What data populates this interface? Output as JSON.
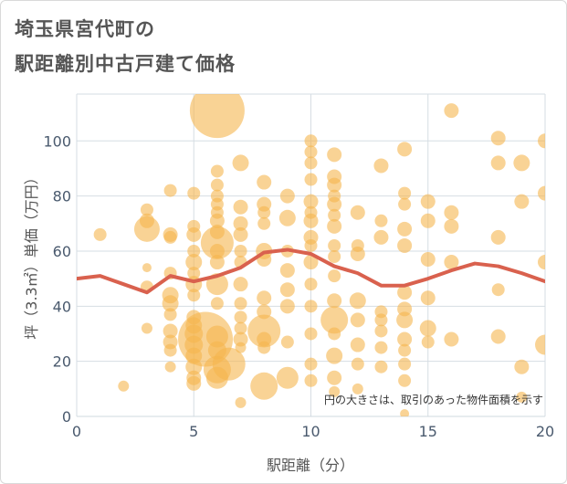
{
  "title_lines": [
    "埼玉県宮代町の",
    "駅距離別中古戸建て価格"
  ],
  "chart_data": {
    "type": "scatter",
    "title": "埼玉県宮代町の駅距離別中古戸建て価格",
    "xlabel": "駅距離（分）",
    "ylabel": "坪（3.3㎡）単価（万円）",
    "xlim": [
      0,
      20
    ],
    "ylim": [
      0,
      117
    ],
    "xticks": [
      0,
      5,
      10,
      15,
      20
    ],
    "yticks": [
      0,
      20,
      40,
      60,
      80,
      100
    ],
    "grid": true,
    "note": "円の大きさは、取引のあった物件面積を示す",
    "colors": {
      "bubble": "#f5b54f",
      "trend": "#d9614e",
      "grid": "#d6dde3"
    },
    "scatter": [
      {
        "x": 1,
        "y": 66,
        "s": 7
      },
      {
        "x": 2,
        "y": 11,
        "s": 6
      },
      {
        "x": 3,
        "y": 75,
        "s": 7
      },
      {
        "x": 3,
        "y": 71,
        "s": 8
      },
      {
        "x": 3,
        "y": 68,
        "s": 14
      },
      {
        "x": 3,
        "y": 54,
        "s": 5
      },
      {
        "x": 3,
        "y": 47,
        "s": 7
      },
      {
        "x": 3,
        "y": 32,
        "s": 6
      },
      {
        "x": 4,
        "y": 82,
        "s": 7
      },
      {
        "x": 4,
        "y": 66,
        "s": 8
      },
      {
        "x": 4,
        "y": 65,
        "s": 7
      },
      {
        "x": 4,
        "y": 52,
        "s": 7
      },
      {
        "x": 4,
        "y": 44,
        "s": 9
      },
      {
        "x": 4,
        "y": 41,
        "s": 9
      },
      {
        "x": 4,
        "y": 37,
        "s": 7
      },
      {
        "x": 4,
        "y": 31,
        "s": 8
      },
      {
        "x": 4,
        "y": 27,
        "s": 8
      },
      {
        "x": 4,
        "y": 24,
        "s": 7
      },
      {
        "x": 4,
        "y": 18,
        "s": 6
      },
      {
        "x": 5,
        "y": 81,
        "s": 7
      },
      {
        "x": 5,
        "y": 69,
        "s": 7
      },
      {
        "x": 5,
        "y": 66,
        "s": 8
      },
      {
        "x": 5,
        "y": 60,
        "s": 7
      },
      {
        "x": 5,
        "y": 56,
        "s": 9
      },
      {
        "x": 5,
        "y": 52,
        "s": 7
      },
      {
        "x": 5,
        "y": 48,
        "s": 9
      },
      {
        "x": 5,
        "y": 44,
        "s": 7
      },
      {
        "x": 5,
        "y": 36,
        "s": 8
      },
      {
        "x": 5,
        "y": 33,
        "s": 9
      },
      {
        "x": 5,
        "y": 30,
        "s": 10
      },
      {
        "x": 5,
        "y": 26,
        "s": 10
      },
      {
        "x": 5,
        "y": 22,
        "s": 9
      },
      {
        "x": 5,
        "y": 18,
        "s": 9
      },
      {
        "x": 5,
        "y": 14,
        "s": 8
      },
      {
        "x": 5,
        "y": 12,
        "s": 8
      },
      {
        "x": 6,
        "y": 111,
        "s": 30
      },
      {
        "x": 6,
        "y": 89,
        "s": 7
      },
      {
        "x": 6,
        "y": 84,
        "s": 7
      },
      {
        "x": 6,
        "y": 80,
        "s": 7
      },
      {
        "x": 6,
        "y": 77,
        "s": 7
      },
      {
        "x": 6,
        "y": 74,
        "s": 7
      },
      {
        "x": 6,
        "y": 71,
        "s": 8
      },
      {
        "x": 6,
        "y": 67,
        "s": 8
      },
      {
        "x": 6,
        "y": 63,
        "s": 18
      },
      {
        "x": 6,
        "y": 60,
        "s": 8
      },
      {
        "x": 6,
        "y": 56,
        "s": 8
      },
      {
        "x": 6,
        "y": 48,
        "s": 12
      },
      {
        "x": 6,
        "y": 41,
        "s": 7
      },
      {
        "x": 5.5,
        "y": 28,
        "s": 30
      },
      {
        "x": 6,
        "y": 29,
        "s": 12
      },
      {
        "x": 6,
        "y": 24,
        "s": 10
      },
      {
        "x": 6.5,
        "y": 19,
        "s": 18
      },
      {
        "x": 6,
        "y": 17,
        "s": 15
      },
      {
        "x": 6,
        "y": 14,
        "s": 12
      },
      {
        "x": 7,
        "y": 92,
        "s": 9
      },
      {
        "x": 7,
        "y": 76,
        "s": 8
      },
      {
        "x": 7,
        "y": 70,
        "s": 8
      },
      {
        "x": 7,
        "y": 66,
        "s": 8
      },
      {
        "x": 7,
        "y": 60,
        "s": 7
      },
      {
        "x": 7,
        "y": 56,
        "s": 7
      },
      {
        "x": 7,
        "y": 48,
        "s": 8
      },
      {
        "x": 7,
        "y": 41,
        "s": 7
      },
      {
        "x": 7,
        "y": 36,
        "s": 7
      },
      {
        "x": 7,
        "y": 32,
        "s": 7
      },
      {
        "x": 7,
        "y": 28,
        "s": 8
      },
      {
        "x": 7,
        "y": 25,
        "s": 6
      },
      {
        "x": 7,
        "y": 5,
        "s": 6
      },
      {
        "x": 8,
        "y": 85,
        "s": 8
      },
      {
        "x": 8,
        "y": 77,
        "s": 8
      },
      {
        "x": 8,
        "y": 74,
        "s": 7
      },
      {
        "x": 8,
        "y": 70,
        "s": 7
      },
      {
        "x": 8,
        "y": 60,
        "s": 9
      },
      {
        "x": 8,
        "y": 57,
        "s": 8
      },
      {
        "x": 8,
        "y": 43,
        "s": 8
      },
      {
        "x": 8,
        "y": 38,
        "s": 8
      },
      {
        "x": 8,
        "y": 31,
        "s": 18
      },
      {
        "x": 8,
        "y": 28,
        "s": 8
      },
      {
        "x": 8,
        "y": 25,
        "s": 7
      },
      {
        "x": 8,
        "y": 11,
        "s": 15
      },
      {
        "x": 9,
        "y": 80,
        "s": 8
      },
      {
        "x": 9,
        "y": 72,
        "s": 9
      },
      {
        "x": 9,
        "y": 60,
        "s": 7
      },
      {
        "x": 9,
        "y": 53,
        "s": 8
      },
      {
        "x": 9,
        "y": 46,
        "s": 8
      },
      {
        "x": 9,
        "y": 40,
        "s": 8
      },
      {
        "x": 9,
        "y": 27,
        "s": 7
      },
      {
        "x": 9,
        "y": 14,
        "s": 12
      },
      {
        "x": 10,
        "y": 100,
        "s": 7
      },
      {
        "x": 10,
        "y": 96,
        "s": 7
      },
      {
        "x": 10,
        "y": 92,
        "s": 7
      },
      {
        "x": 10,
        "y": 86,
        "s": 7
      },
      {
        "x": 10,
        "y": 78,
        "s": 8
      },
      {
        "x": 10,
        "y": 74,
        "s": 7
      },
      {
        "x": 10,
        "y": 71,
        "s": 8
      },
      {
        "x": 10,
        "y": 65,
        "s": 8
      },
      {
        "x": 10,
        "y": 62,
        "s": 7
      },
      {
        "x": 10,
        "y": 56,
        "s": 8
      },
      {
        "x": 10,
        "y": 48,
        "s": 7
      },
      {
        "x": 10,
        "y": 40,
        "s": 7
      },
      {
        "x": 10,
        "y": 30,
        "s": 7
      },
      {
        "x": 10,
        "y": 19,
        "s": 7
      },
      {
        "x": 10,
        "y": 13,
        "s": 7
      },
      {
        "x": 11,
        "y": 95,
        "s": 8
      },
      {
        "x": 11,
        "y": 87,
        "s": 8
      },
      {
        "x": 11,
        "y": 84,
        "s": 8
      },
      {
        "x": 11,
        "y": 80,
        "s": 7
      },
      {
        "x": 11,
        "y": 77,
        "s": 8
      },
      {
        "x": 11,
        "y": 73,
        "s": 7
      },
      {
        "x": 11,
        "y": 69,
        "s": 8
      },
      {
        "x": 11,
        "y": 62,
        "s": 7
      },
      {
        "x": 11,
        "y": 58,
        "s": 7
      },
      {
        "x": 11,
        "y": 51,
        "s": 7
      },
      {
        "x": 11,
        "y": 42,
        "s": 8
      },
      {
        "x": 11,
        "y": 35,
        "s": 15
      },
      {
        "x": 11,
        "y": 30,
        "s": 7
      },
      {
        "x": 11,
        "y": 22,
        "s": 9
      },
      {
        "x": 11,
        "y": 14,
        "s": 8
      },
      {
        "x": 11,
        "y": 9,
        "s": 6
      },
      {
        "x": 12,
        "y": 74,
        "s": 8
      },
      {
        "x": 12,
        "y": 62,
        "s": 7
      },
      {
        "x": 12,
        "y": 59,
        "s": 8
      },
      {
        "x": 12,
        "y": 42,
        "s": 9
      },
      {
        "x": 12,
        "y": 35,
        "s": 8
      },
      {
        "x": 12,
        "y": 26,
        "s": 8
      },
      {
        "x": 12,
        "y": 19,
        "s": 7
      },
      {
        "x": 12,
        "y": 10,
        "s": 6
      },
      {
        "x": 13,
        "y": 91,
        "s": 8
      },
      {
        "x": 13,
        "y": 71,
        "s": 7
      },
      {
        "x": 13,
        "y": 65,
        "s": 8
      },
      {
        "x": 13,
        "y": 38,
        "s": 7
      },
      {
        "x": 13,
        "y": 35,
        "s": 7
      },
      {
        "x": 13,
        "y": 31,
        "s": 7
      },
      {
        "x": 13,
        "y": 25,
        "s": 7
      },
      {
        "x": 13,
        "y": 18,
        "s": 7
      },
      {
        "x": 14,
        "y": 97,
        "s": 8
      },
      {
        "x": 14,
        "y": 81,
        "s": 7
      },
      {
        "x": 14,
        "y": 77,
        "s": 7
      },
      {
        "x": 14,
        "y": 68,
        "s": 8
      },
      {
        "x": 14,
        "y": 62,
        "s": 8
      },
      {
        "x": 14,
        "y": 45,
        "s": 8
      },
      {
        "x": 14,
        "y": 39,
        "s": 8
      },
      {
        "x": 14,
        "y": 35,
        "s": 9
      },
      {
        "x": 14,
        "y": 28,
        "s": 8
      },
      {
        "x": 14,
        "y": 24,
        "s": 7
      },
      {
        "x": 14,
        "y": 19,
        "s": 7
      },
      {
        "x": 14,
        "y": 13,
        "s": 7
      },
      {
        "x": 14,
        "y": 1,
        "s": 5
      },
      {
        "x": 15,
        "y": 78,
        "s": 8
      },
      {
        "x": 15,
        "y": 71,
        "s": 8
      },
      {
        "x": 15,
        "y": 57,
        "s": 8
      },
      {
        "x": 15,
        "y": 43,
        "s": 8
      },
      {
        "x": 15,
        "y": 32,
        "s": 9
      },
      {
        "x": 15,
        "y": 27,
        "s": 7
      },
      {
        "x": 16,
        "y": 111,
        "s": 8
      },
      {
        "x": 16,
        "y": 74,
        "s": 8
      },
      {
        "x": 16,
        "y": 69,
        "s": 8
      },
      {
        "x": 16,
        "y": 56,
        "s": 8
      },
      {
        "x": 16,
        "y": 28,
        "s": 8
      },
      {
        "x": 18,
        "y": 101,
        "s": 8
      },
      {
        "x": 18,
        "y": 92,
        "s": 8
      },
      {
        "x": 18,
        "y": 65,
        "s": 8
      },
      {
        "x": 18,
        "y": 46,
        "s": 7
      },
      {
        "x": 18,
        "y": 29,
        "s": 8
      },
      {
        "x": 19,
        "y": 92,
        "s": 9
      },
      {
        "x": 19,
        "y": 78,
        "s": 8
      },
      {
        "x": 19,
        "y": 18,
        "s": 8
      },
      {
        "x": 19,
        "y": 7,
        "s": 6
      },
      {
        "x": 20,
        "y": 100,
        "s": 8
      },
      {
        "x": 20,
        "y": 81,
        "s": 8
      },
      {
        "x": 20,
        "y": 56,
        "s": 8
      },
      {
        "x": 20,
        "y": 26,
        "s": 11
      }
    ],
    "trend": {
      "x": [
        0,
        1,
        2,
        3,
        4,
        5,
        6,
        7,
        8,
        9,
        10,
        11,
        12,
        13,
        14,
        15,
        16,
        17,
        18,
        19,
        20
      ],
      "y": [
        50,
        51,
        48,
        45,
        51,
        49,
        51,
        54,
        59.5,
        60.5,
        59,
        54.5,
        52,
        47.5,
        47.5,
        50,
        53,
        55.5,
        54.5,
        52,
        49
      ]
    }
  }
}
